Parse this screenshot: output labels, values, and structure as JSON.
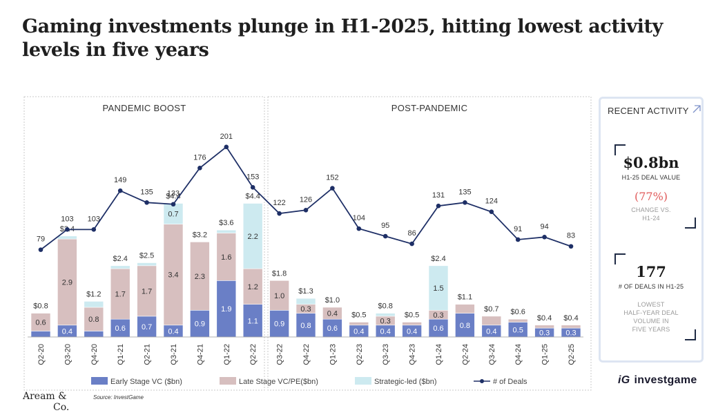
{
  "title": "Gaming investments plunge in H1-2025, hitting lowest activity levels in five years",
  "chart_data": {
    "type": "bar",
    "stacked": true,
    "combo_line": true,
    "categories": [
      "Q2-20",
      "Q3-20",
      "Q4-20",
      "Q1-21",
      "Q2-21",
      "Q3-21",
      "Q4-21",
      "Q1-22",
      "Q2-22",
      "Q3-22",
      "Q4-22",
      "Q1-23",
      "Q2-23",
      "Q3-23",
      "Q4-23",
      "Q1-24",
      "Q2-24",
      "Q3-24",
      "Q4-24",
      "Q1-25",
      "Q2-25"
    ],
    "sections": [
      {
        "label": "PANDEMIC BOOST",
        "from": 0,
        "to": 8
      },
      {
        "label": "POST-PANDEMIC",
        "from": 9,
        "to": 20
      }
    ],
    "series": [
      {
        "name": "Early Stage VC ($bn)",
        "color": "#6a7fc6",
        "values": [
          0.2,
          0.4,
          0.2,
          0.6,
          0.7,
          0.4,
          0.9,
          1.9,
          1.1,
          0.9,
          0.8,
          0.6,
          0.4,
          0.4,
          0.4,
          0.6,
          0.8,
          0.4,
          0.5,
          0.3,
          0.3
        ],
        "labels": [
          "",
          "0.4",
          "",
          "0.6",
          "0.7",
          "0.4",
          "0.9",
          "1.9",
          "1.1",
          "0.9",
          "0.8",
          "0.6",
          "0.4",
          "0.4",
          "0.4",
          "0.6",
          "0.8",
          "0.4",
          "0.5",
          "0.3",
          "0.3"
        ]
      },
      {
        "name": "Late Stage VC/PE($bn)",
        "color": "#d7bfbf",
        "values": [
          0.6,
          2.9,
          0.8,
          1.7,
          1.7,
          3.4,
          2.3,
          1.6,
          1.2,
          1.0,
          0.3,
          0.4,
          0.1,
          0.3,
          0.1,
          0.3,
          0.3,
          0.3,
          0.1,
          0.1,
          0.1
        ],
        "labels": [
          "0.6",
          "2.9",
          "0.8",
          "1.7",
          "1.7",
          "3.4",
          "2.3",
          "1.6",
          "1.2",
          "1.0",
          "0.3",
          "0.4",
          "",
          "0.3",
          "",
          "0.3",
          "",
          "",
          "",
          "",
          ""
        ]
      },
      {
        "name": "Strategic-led ($bn)",
        "color": "#cdeaf0",
        "values": [
          0.0,
          0.1,
          0.2,
          0.1,
          0.1,
          0.7,
          0.0,
          0.1,
          2.2,
          0.0,
          0.2,
          0.0,
          0.0,
          0.1,
          0.0,
          1.5,
          0.0,
          0.0,
          0.0,
          0.0,
          0.0
        ],
        "labels": [
          "",
          "",
          "",
          "",
          "",
          "0.7",
          "",
          "",
          "2.2",
          "",
          "",
          "",
          "",
          "",
          "",
          "1.5",
          "",
          "",
          "",
          "",
          ""
        ]
      }
    ],
    "totals": [
      "$0.8",
      "$3.4",
      "$1.2",
      "$2.4",
      "$2.5",
      "$4.4",
      "$3.2",
      "$3.6",
      "$4.4",
      "$1.8",
      "$1.3",
      "$1.0",
      "$0.5",
      "$0.8",
      "$0.5",
      "$2.4",
      "$1.1",
      "$0.7",
      "$0.6",
      "$0.4",
      "$0.4"
    ],
    "line": {
      "name": "# of Deals",
      "color": "#1e2f66",
      "values": [
        79,
        103,
        103,
        149,
        135,
        133,
        176,
        201,
        153,
        122,
        126,
        152,
        104,
        95,
        86,
        131,
        135,
        124,
        91,
        94,
        83
      ]
    },
    "legend_position": "bottom"
  },
  "panel": {
    "heading": "RECENT ACTIVITY",
    "deal_value": "$0.8bn",
    "deal_value_label": "H1-25 DEAL VALUE",
    "change": "(77%)",
    "change_label_1": "CHANGE VS.",
    "change_label_2": "H1-24",
    "deals": "177",
    "deals_label": "# OF DEALS IN H1-25",
    "note_1": "LOWEST",
    "note_2": "HALF-YEAR DEAL",
    "note_3": "VOLUME IN",
    "note_4": "FIVE YEARS"
  },
  "footer": {
    "logo_line1": "Aream &",
    "logo_line2": "Co.",
    "source": "Source: InvestGame",
    "brand_mark": "iG",
    "brand_name": "investgame"
  }
}
